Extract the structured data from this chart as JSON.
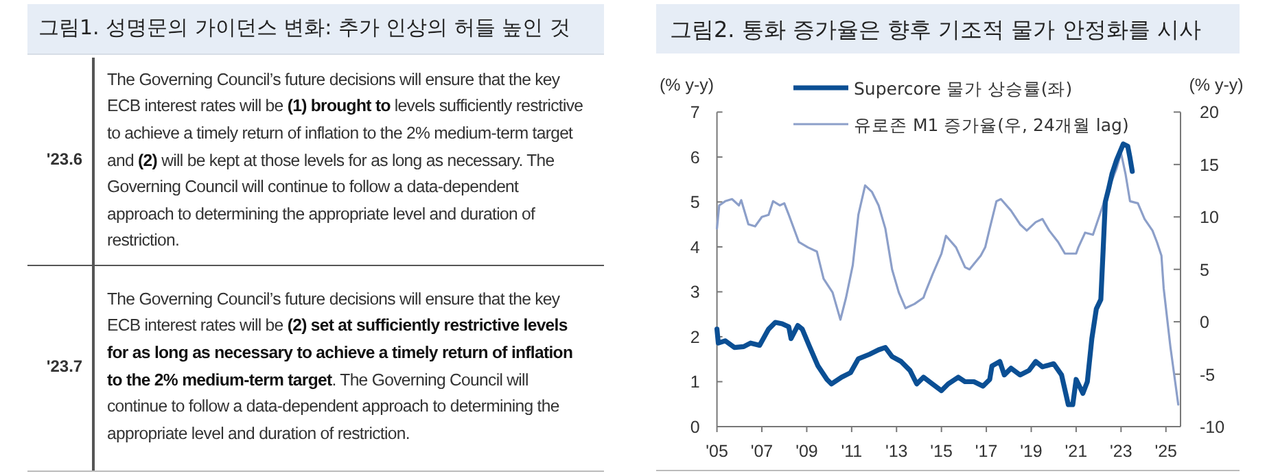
{
  "chart_data": [
    {
      "type": "other",
      "title": "그림1. 성명문의 가이던스 변화: 추가 인상의 허들 높인 것",
      "categories": [
        "'23.6",
        "'23.7"
      ],
      "annotations": [
        "The Governing Council’s future decisions will ensure that the key ECB interest rates will be **(1) brought to** levels sufficiently restrictive to achieve a timely return of inflation to the 2% medium-term target and **(2)** will be kept at those levels for as long as necessary. The Governing Council will continue to follow a data-dependent approach to determining the appropriate level and duration of restriction.",
        "The Governing Council’s future decisions will ensure that the key ECB interest rates will be **(2) set at sufficiently restrictive levels for as long as necessary to achieve a timely return of inflation to the 2% medium-term target**. The Governing Council will continue to follow a data-dependent approach to determining the appropriate level and duration of restriction."
      ]
    },
    {
      "type": "line",
      "title": "그림2. 통화 증가율은 향후 기조적 물가 안정화를 시사",
      "ylabel": "(% y-y)",
      "y2label": "(% y-y)",
      "xlim": [
        2005,
        2025.65
      ],
      "xticks": [
        {
          "value": 2005,
          "label": "'05"
        },
        {
          "value": 2007,
          "label": "'07"
        },
        {
          "value": 2009,
          "label": "'09"
        },
        {
          "value": 2011,
          "label": "'11"
        },
        {
          "value": 2013,
          "label": "'13"
        },
        {
          "value": 2015,
          "label": "'15"
        },
        {
          "value": 2017,
          "label": "'17"
        },
        {
          "value": 2019,
          "label": "'19"
        },
        {
          "value": 2021,
          "label": "'21"
        },
        {
          "value": 2023,
          "label": "'23"
        },
        {
          "value": 2025,
          "label": "'25"
        }
      ],
      "ylim": [
        0,
        7
      ],
      "yticks": [
        0,
        1,
        2,
        3,
        4,
        5,
        6,
        7
      ],
      "y2lim": [
        -10,
        20
      ],
      "y2ticks": [
        -10,
        -5,
        0,
        5,
        10,
        15,
        20
      ],
      "legend": "top",
      "grid": false,
      "series": [
        {
          "name": "Supercore 물가 상승률(좌)",
          "color": "#0b4f94",
          "axis": "y",
          "x": [
            2005.0,
            2005.06,
            2005.37,
            2005.78,
            2006.19,
            2006.5,
            2006.9,
            2007.3,
            2007.6,
            2007.9,
            2008.2,
            2008.3,
            2008.6,
            2008.8,
            2009.1,
            2009.5,
            2009.9,
            2010.1,
            2010.55,
            2010.95,
            2011.3,
            2011.8,
            2012.2,
            2012.5,
            2012.8,
            2013.2,
            2013.6,
            2013.9,
            2014.2,
            2014.6,
            2015.0,
            2015.3,
            2015.75,
            2016.05,
            2016.45,
            2016.85,
            2017.15,
            2017.25,
            2017.6,
            2017.8,
            2018.1,
            2018.5,
            2018.9,
            2019.2,
            2019.5,
            2020.0,
            2020.35,
            2020.65,
            2020.85,
            2021.0,
            2021.3,
            2021.5,
            2021.7,
            2021.9,
            2022.1,
            2022.2,
            2022.3,
            2022.45,
            2022.6,
            2022.8,
            2023.1,
            2023.3,
            2023.4,
            2023.5
          ],
          "values": [
            2.17,
            1.86,
            1.91,
            1.76,
            1.78,
            1.86,
            1.81,
            2.17,
            2.32,
            2.29,
            2.22,
            1.96,
            2.25,
            2.17,
            1.81,
            1.35,
            1.05,
            0.95,
            1.1,
            1.2,
            1.51,
            1.61,
            1.71,
            1.76,
            1.56,
            1.45,
            1.25,
            0.95,
            1.1,
            0.95,
            0.8,
            0.95,
            1.1,
            1.0,
            1.0,
            0.9,
            1.05,
            1.35,
            1.45,
            1.15,
            1.3,
            1.15,
            1.25,
            1.45,
            1.33,
            1.4,
            1.15,
            0.49,
            0.49,
            1.05,
            0.74,
            1.0,
            1.96,
            2.62,
            2.83,
            3.9,
            5.0,
            5.3,
            5.63,
            5.93,
            6.29,
            6.24,
            5.98,
            5.68
          ]
        },
        {
          "name": "유로존 M1 증가율(우, 24개월 lag)",
          "color": "#8c9fc9",
          "axis": "y2",
          "x": [
            2005.0,
            2005.1,
            2005.37,
            2005.67,
            2005.98,
            2006.08,
            2006.4,
            2006.7,
            2007.0,
            2007.3,
            2007.5,
            2007.8,
            2008.0,
            2008.2,
            2008.65,
            2009.05,
            2009.45,
            2009.75,
            2010.15,
            2010.5,
            2010.75,
            2011.05,
            2011.3,
            2011.6,
            2011.9,
            2012.2,
            2012.5,
            2012.7,
            2012.8,
            2013.1,
            2013.4,
            2013.8,
            2014.2,
            2014.3,
            2014.6,
            2015.0,
            2015.2,
            2015.65,
            2016.05,
            2016.25,
            2016.75,
            2016.95,
            2017.15,
            2017.45,
            2017.65,
            2018.1,
            2018.5,
            2018.8,
            2019.2,
            2019.5,
            2019.8,
            2020.2,
            2020.5,
            2021.0,
            2021.1,
            2021.4,
            2021.75,
            2022.4,
            2022.8,
            2023.0,
            2023.2,
            2023.4,
            2023.75,
            2024.05,
            2024.4,
            2024.6,
            2024.8,
            2024.9,
            2025.2,
            2025.55
          ],
          "values": [
            8.9,
            11.1,
            11.5,
            11.7,
            11.1,
            11.6,
            9.3,
            9.1,
            10.0,
            10.2,
            11.5,
            11.1,
            11.3,
            10.2,
            7.6,
            7.1,
            6.7,
            4.1,
            2.8,
            0.2,
            2.3,
            5.4,
            10.2,
            13.0,
            12.4,
            11.1,
            8.9,
            6.3,
            5.0,
            2.8,
            1.3,
            1.7,
            2.3,
            2.9,
            4.5,
            6.5,
            8.2,
            7.1,
            5.2,
            5.0,
            6.3,
            7.1,
            8.9,
            11.5,
            11.7,
            10.6,
            9.3,
            8.7,
            9.5,
            9.8,
            8.7,
            7.6,
            6.5,
            6.5,
            7.1,
            8.5,
            8.3,
            12.4,
            14.6,
            16.1,
            14.1,
            11.5,
            11.3,
            9.8,
            8.7,
            7.6,
            6.3,
            3.2,
            -2.4,
            -7.9
          ]
        }
      ]
    }
  ]
}
